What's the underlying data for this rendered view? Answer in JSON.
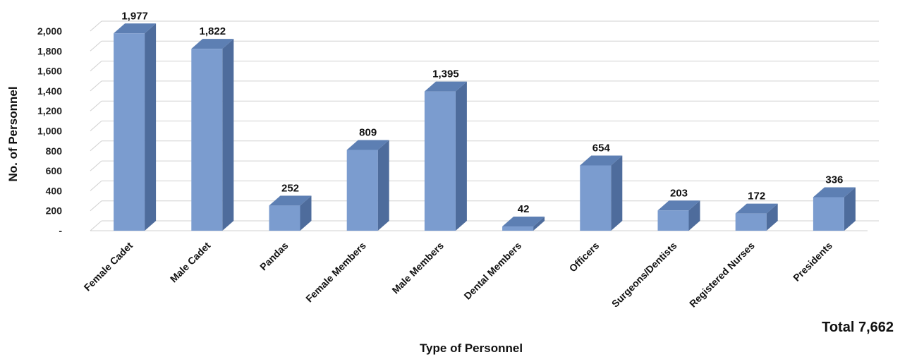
{
  "chart_data": {
    "type": "bar",
    "style": "3d-column",
    "categories": [
      "Female Cadet",
      "Male Cadet",
      "Pandas",
      "Female Members",
      "Male Members",
      "Dental Members",
      "Officers",
      "Surgeons/Dentists",
      "Registered Nurses",
      "Presidents"
    ],
    "values": [
      1977,
      1822,
      252,
      809,
      1395,
      42,
      654,
      203,
      172,
      336
    ],
    "data_labels": [
      "1,977",
      "1,822",
      "252",
      "809",
      "1,395",
      "42",
      "654",
      "203",
      "172",
      "336"
    ],
    "ylabel": "No. of Personnel",
    "xlabel": "Type of Personnel",
    "ylim": [
      0,
      2000
    ],
    "yticks": [
      0,
      200,
      400,
      600,
      800,
      1000,
      1200,
      1400,
      1600,
      1800,
      2000
    ],
    "ytick_labels": [
      "-",
      "200",
      "400",
      "600",
      "800",
      "1,000",
      "1,200",
      "1,400",
      "1,600",
      "1,800",
      "2,000"
    ],
    "grid": true,
    "bar_color": "#7b9ccf",
    "bar_side_color": "#4e6c9c",
    "bar_top_color": "#5d7fb3",
    "grid_color": "#d0d0d0",
    "annotation": "Total 7,662"
  }
}
